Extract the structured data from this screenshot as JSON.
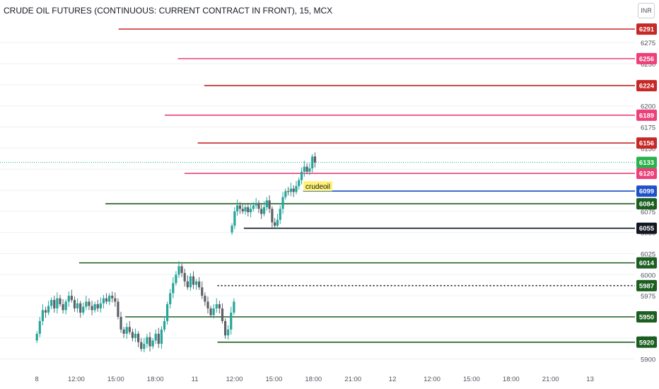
{
  "header": {
    "title": "CRUDE OIL FUTURES (CONTINUOUS: CURRENT CONTRACT IN FRONT), 15, MCX",
    "currency": "INR"
  },
  "chart_data": {
    "type": "candlestick",
    "y_axis": {
      "range": [
        5893,
        6302
      ],
      "tick_labels": [
        6275,
        6250,
        6225,
        6200,
        6175,
        6150,
        6125,
        6100,
        6075,
        6050,
        6025,
        6000,
        5975,
        5950,
        5925,
        5900
      ]
    },
    "x_axis": {
      "tick_labels": [
        "8",
        "12:00",
        "15:00",
        "18:00",
        "11",
        "12:00",
        "15:00",
        "18:00",
        "21:00",
        "12",
        "12:00",
        "15:00",
        "18:00",
        "21:00",
        "13"
      ]
    },
    "levels": [
      {
        "value": 6291,
        "label": "6291",
        "color": "#c62828",
        "x_start_fraction": 0.18
      },
      {
        "value": 6256,
        "label": "6256",
        "color": "#ec407a",
        "x_start_fraction": 0.27
      },
      {
        "value": 6224,
        "label": "6224",
        "color": "#c62828",
        "x_start_fraction": 0.31
      },
      {
        "value": 6189,
        "label": "6189",
        "color": "#ec407a",
        "x_start_fraction": 0.25
      },
      {
        "value": 6156,
        "label": "6156",
        "color": "#c62828",
        "x_start_fraction": 0.3
      },
      {
        "value": 6120,
        "label": "6120",
        "color": "#ec407a",
        "x_start_fraction": 0.28
      },
      {
        "value": 6099,
        "label": "6099",
        "color": "#1e50c8",
        "x_start_fraction": 0.46
      },
      {
        "value": 6084,
        "label": "6084",
        "color": "#1b5e20",
        "x_start_fraction": 0.16
      },
      {
        "value": 6055,
        "label": "6055",
        "color": "#131722",
        "x_start_fraction": 0.37
      },
      {
        "value": 6014,
        "label": "6014",
        "color": "#1b5e20",
        "x_start_fraction": 0.12
      },
      {
        "value": 5987,
        "label": "5987",
        "color": "#131722",
        "x_start_fraction": 0.33,
        "dotted": true
      },
      {
        "value": 5950,
        "label": "5950",
        "color": "#1b5e20",
        "x_start_fraction": 0.19
      },
      {
        "value": 5920,
        "label": "5920",
        "color": "#1b5e20",
        "x_start_fraction": 0.33
      }
    ],
    "current_price": {
      "value": 6133,
      "label": "6133",
      "color": "#22ab94"
    },
    "annotation": {
      "text": "crudeoil",
      "value": 6104
    },
    "session_day1": {
      "x_start_fraction": 0.056,
      "x_end_fraction": 0.355,
      "closes": [
        5930,
        5945,
        5958,
        5955,
        5963,
        5970,
        5960,
        5972,
        5965,
        5958,
        5968,
        5975,
        5970,
        5960,
        5966,
        5955,
        5962,
        5968,
        5963,
        5958,
        5965,
        5960,
        5966,
        5972,
        5968,
        5975,
        5972,
        5968,
        5950,
        5935,
        5930,
        5938,
        5932,
        5925,
        5930,
        5920,
        5912,
        5918,
        5926,
        5915,
        5922,
        5930,
        5918,
        5935,
        5945,
        5965,
        5978,
        5990,
        6000,
        6010,
        6002,
        5992,
        5985,
        5998,
        5988,
        5992,
        5985,
        5975,
        5968,
        5960,
        5952,
        5960,
        5965,
        5960,
        5945,
        5928,
        5935,
        5955,
        5968
      ]
    },
    "session_day2": {
      "x_start_fraction": 0.352,
      "x_end_fraction": 0.478,
      "closes": [
        6058,
        6075,
        6082,
        6078,
        6075,
        6080,
        6074,
        6078,
        6082,
        6085,
        6078,
        6072,
        6080,
        6088,
        6078,
        6062,
        6058,
        6065,
        6078,
        6092,
        6099,
        6098,
        6102,
        6098,
        6105,
        6112,
        6122,
        6128,
        6122,
        6126,
        6140,
        6133
      ]
    }
  }
}
